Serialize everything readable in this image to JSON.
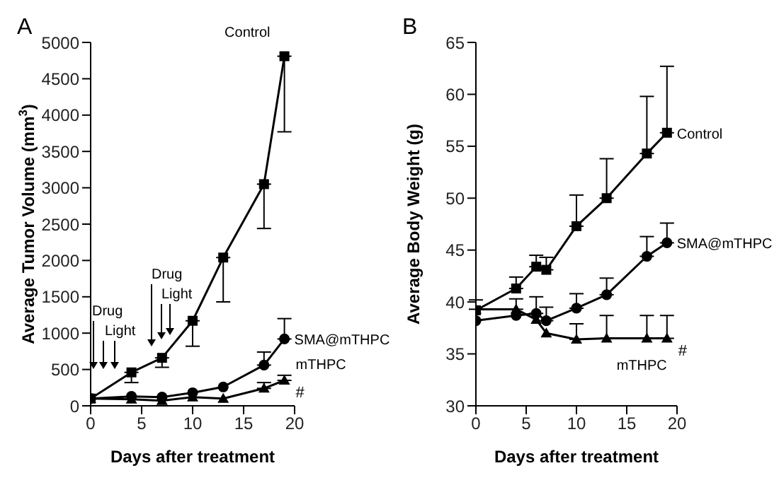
{
  "chart_data": [
    {
      "type": "line",
      "title": "A",
      "xlabel": "Days after treatment",
      "ylabel": "Average Tumor Volume (mm$^{3}$)",
      "xlim": [
        0,
        20
      ],
      "xticks": [
        0,
        5,
        10,
        15,
        20
      ],
      "ylim": [
        0,
        5000
      ],
      "yticks": [
        0,
        500,
        1000,
        1500,
        2000,
        2500,
        3000,
        3500,
        4000,
        4500,
        5000
      ],
      "grid": false,
      "legend": false,
      "series": [
        {
          "name": "Control",
          "color": "#000000",
          "marker": "square",
          "x": [
            0,
            4,
            7,
            10,
            13,
            17,
            19
          ],
          "values": [
            100,
            460,
            660,
            1170,
            2040,
            3050,
            4810
          ],
          "errors": [
            null,
            [
              320,
              460
            ],
            [
              530,
              660
            ],
            [
              820,
              1170
            ],
            [
              1430,
              2040
            ],
            [
              2440,
              3050
            ],
            [
              3770,
              4810
            ]
          ]
        },
        {
          "name": "SMA@mTHPC",
          "color": "#000000",
          "marker": "circle",
          "x": [
            0,
            4,
            7,
            10,
            13,
            17,
            19
          ],
          "values": [
            100,
            130,
            120,
            180,
            260,
            560,
            920
          ],
          "errors": [
            null,
            null,
            null,
            null,
            null,
            [
              560,
              740
            ],
            [
              920,
              1200
            ]
          ]
        },
        {
          "name": "mTHPC",
          "color": "#000000",
          "marker": "triangle",
          "x": [
            0,
            4,
            7,
            10,
            13,
            17,
            19
          ],
          "values": [
            100,
            90,
            70,
            120,
            100,
            240,
            350
          ],
          "errors": [
            null,
            null,
            null,
            null,
            null,
            [
              240,
              320
            ],
            [
              350,
              420
            ]
          ]
        }
      ],
      "annotations": [
        "Drug",
        "Light",
        "Drug",
        "Light",
        {
          "text": "#",
          "x": 19,
          "y": 350
        }
      ]
    },
    {
      "type": "line",
      "title": "B",
      "xlabel": "Days after treatment",
      "ylabel": "Average Body Weight (g)",
      "xlim": [
        0,
        20
      ],
      "xticks": [
        0,
        5,
        10,
        15,
        20
      ],
      "ylim": [
        30,
        65
      ],
      "yticks": [
        30,
        35,
        40,
        45,
        50,
        55,
        60,
        65
      ],
      "grid": false,
      "legend": false,
      "series": [
        {
          "name": "Control",
          "color": "#000000",
          "marker": "square",
          "x": [
            0,
            4,
            6,
            7,
            10,
            13,
            17,
            19
          ],
          "values": [
            39.2,
            41.3,
            43.4,
            43.1,
            47.3,
            50,
            54.3,
            56.3
          ],
          "errors": [
            null,
            [
              41.3,
              42.4
            ],
            [
              43.4,
              44.5
            ],
            [
              43.1,
              44.3
            ],
            [
              47.3,
              50.3
            ],
            [
              50,
              53.8
            ],
            [
              54.3,
              59.8
            ],
            [
              56.3,
              62.7
            ]
          ]
        },
        {
          "name": "SMA@mTHPC",
          "color": "#000000",
          "marker": "circle",
          "x": [
            0,
            4,
            6,
            7,
            10,
            13,
            17,
            19
          ],
          "values": [
            38.2,
            38.7,
            38.9,
            38.2,
            39.4,
            40.7,
            44.4,
            45.7
          ],
          "errors": [
            null,
            null,
            [
              38.9,
              40.5
            ],
            [
              38.2,
              39.5
            ],
            [
              39.4,
              40.8
            ],
            [
              40.7,
              42.3
            ],
            [
              44.4,
              46.3
            ],
            [
              45.7,
              47.6
            ]
          ]
        },
        {
          "name": "mTHPC",
          "color": "#000000",
          "marker": "triangle",
          "x": [
            0,
            4,
            6,
            7,
            10,
            13,
            17,
            19
          ],
          "values": [
            39.3,
            39.3,
            38.3,
            37.0,
            36.4,
            36.5,
            36.5,
            36.5
          ],
          "errors": [
            [
              39.3,
              40.2
            ],
            [
              39.3,
              40.3
            ],
            null,
            null,
            [
              36.4,
              37.9
            ],
            [
              36.5,
              38.7
            ],
            [
              36.5,
              38.7
            ],
            [
              36.5,
              38.7
            ]
          ]
        }
      ],
      "annotations": [
        {
          "text": "#",
          "x": 19,
          "y": 36.5
        }
      ]
    }
  ]
}
